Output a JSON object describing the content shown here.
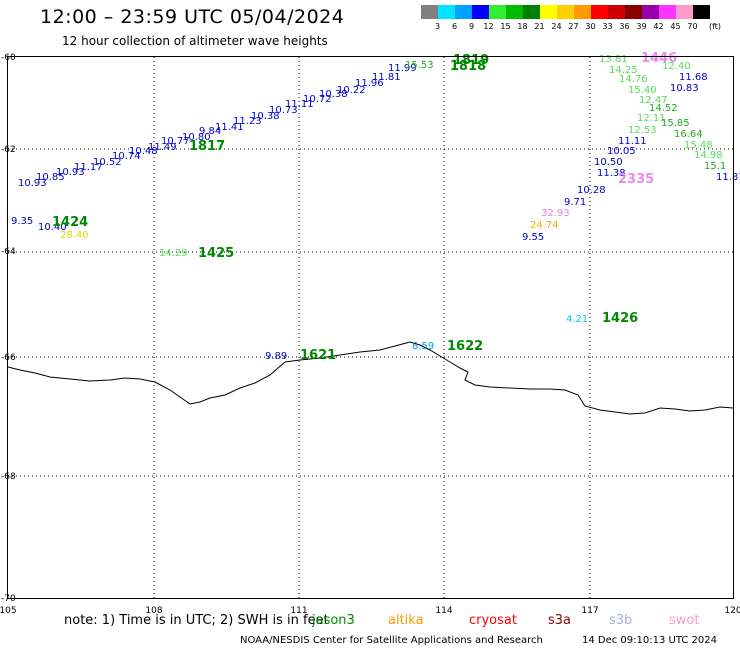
{
  "header": {
    "title": "12:00 – 23:59 UTC 05/04/2024",
    "subtitle": "12 hour collection of altimeter wave heights"
  },
  "colorbar": {
    "unit": "(ft)",
    "cells": [
      {
        "label": "3",
        "color": "#808080"
      },
      {
        "label": "6",
        "color": "#00e5ff"
      },
      {
        "label": "9",
        "color": "#00a0ff"
      },
      {
        "label": "12",
        "color": "#0000ff"
      },
      {
        "label": "15",
        "color": "#33ee33"
      },
      {
        "label": "18",
        "color": "#00bb00"
      },
      {
        "label": "21",
        "color": "#008000"
      },
      {
        "label": "24",
        "color": "#ffff00"
      },
      {
        "label": "27",
        "color": "#ffd000"
      },
      {
        "label": "30",
        "color": "#ff9900"
      },
      {
        "label": "33",
        "color": "#ff0000"
      },
      {
        "label": "36",
        "color": "#cc0000"
      },
      {
        "label": "39",
        "color": "#880000"
      },
      {
        "label": "42",
        "color": "#9900aa"
      },
      {
        "label": "45",
        "color": "#ff33ff"
      },
      {
        "label": "70",
        "color": "#ff99cc"
      },
      {
        "label": "",
        "color": "#000000"
      }
    ]
  },
  "axes": {
    "lon_labels": [
      "105",
      "108",
      "111",
      "114",
      "117",
      "120"
    ],
    "lat_labels": [
      "-60",
      "-62",
      "-64",
      "-66",
      "-68",
      "-70"
    ]
  },
  "readings": [
    {
      "text": "10.93",
      "color": "#0000cc"
    },
    {
      "text": "10.85",
      "color": "#0000cc"
    },
    {
      "text": "10.93",
      "color": "#0000cc"
    },
    {
      "text": "11.17",
      "color": "#0000cc"
    },
    {
      "text": "10.52",
      "color": "#0000cc"
    },
    {
      "text": "10.74",
      "color": "#0000cc"
    },
    {
      "text": "10.48",
      "color": "#0000cc"
    },
    {
      "text": "11.49",
      "color": "#0000cc"
    },
    {
      "text": "10.77",
      "color": "#0000cc"
    },
    {
      "text": "10.80",
      "color": "#0000cc"
    },
    {
      "text": "9.84",
      "color": "#0000cc"
    },
    {
      "text": "11.41",
      "color": "#0000cc"
    },
    {
      "text": "11.23",
      "color": "#0000cc"
    },
    {
      "text": "10.38",
      "color": "#0000cc"
    },
    {
      "text": "10.73",
      "color": "#0000cc"
    },
    {
      "text": "11.11",
      "color": "#0000cc"
    },
    {
      "text": "10.72",
      "color": "#0000cc"
    },
    {
      "text": "10.38",
      "color": "#0000cc"
    },
    {
      "text": "10.22",
      "color": "#0000cc"
    },
    {
      "text": "11.96",
      "color": "#0000cc"
    },
    {
      "text": "11.81",
      "color": "#0000cc"
    },
    {
      "text": "11.99",
      "color": "#0000cc"
    },
    {
      "text": "15.53",
      "color": "#22aa22"
    },
    {
      "text": "9.35",
      "color": "#0000cc"
    },
    {
      "text": "10.40",
      "color": "#0000cc"
    },
    {
      "text": "28.40",
      "color": "#dddd00"
    },
    {
      "text": "14.29",
      "color": "#55dd55"
    },
    {
      "text": "13.81",
      "color": "#55dd55"
    },
    {
      "text": "14.25",
      "color": "#55dd55"
    },
    {
      "text": "14.76",
      "color": "#55dd55"
    },
    {
      "text": "15.40",
      "color": "#55dd55"
    },
    {
      "text": "12.47",
      "color": "#55dd55"
    },
    {
      "text": "12.11",
      "color": "#55dd55"
    },
    {
      "text": "12.53",
      "color": "#55dd55"
    },
    {
      "text": "12.40",
      "color": "#55dd55"
    },
    {
      "text": "11.68",
      "color": "#0000cc"
    },
    {
      "text": "10.83",
      "color": "#0000cc"
    },
    {
      "text": "14.52",
      "color": "#22aa22"
    },
    {
      "text": "15.85",
      "color": "#22aa22"
    },
    {
      "text": "16.64",
      "color": "#22aa22"
    },
    {
      "text": "15.48",
      "color": "#55dd55"
    },
    {
      "text": "14.98",
      "color": "#55dd55"
    },
    {
      "text": "15.1",
      "color": "#22aa22"
    },
    {
      "text": "11.81",
      "color": "#0000cc"
    },
    {
      "text": "11.11",
      "color": "#0000cc"
    },
    {
      "text": "10.05",
      "color": "#0000cc"
    },
    {
      "text": "10.50",
      "color": "#0000cc"
    },
    {
      "text": "11.38",
      "color": "#0000cc"
    },
    {
      "text": "10.28",
      "color": "#0000cc"
    },
    {
      "text": "9.71",
      "color": "#0000cc"
    },
    {
      "text": "32.93",
      "color": "#ee77ee"
    },
    {
      "text": "24.74",
      "color": "#ffaa00"
    },
    {
      "text": "9.55",
      "color": "#0000cc"
    },
    {
      "text": "4.21",
      "color": "#00ccee"
    },
    {
      "text": "9.89",
      "color": "#0000cc"
    },
    {
      "text": "8.59",
      "color": "#00a0ee"
    }
  ],
  "time_labels": [
    {
      "text": "1819",
      "color": "#008800"
    },
    {
      "text": "1818",
      "color": "#008800"
    },
    {
      "text": "1817",
      "color": "#008800"
    },
    {
      "text": "1424",
      "color": "#008800"
    },
    {
      "text": "1425",
      "color": "#008800"
    },
    {
      "text": "1446",
      "color": "#ee88ee"
    },
    {
      "text": "2335",
      "color": "#ee88ee"
    },
    {
      "text": "1426",
      "color": "#008800"
    },
    {
      "text": "1621",
      "color": "#008800"
    },
    {
      "text": "1622",
      "color": "#008800"
    }
  ],
  "note": "note:  1) Time is in UTC; 2) SWH is in feet",
  "satellites": [
    {
      "text": "jason3",
      "color": "#008800"
    },
    {
      "text": "altika",
      "color": "#ff9900"
    },
    {
      "text": "cryosat",
      "color": "#ff0000"
    },
    {
      "text": "s3a",
      "color": "#880000"
    },
    {
      "text": "s3b",
      "color": "#aaaaee"
    },
    {
      "text": "swot",
      "color": "#ff99cc"
    }
  ],
  "footer": {
    "credit": "NOAA/NESDIS Center for Satellite Applications and Research",
    "timestamp": "14 Dec 09:10:13 UTC 2024"
  }
}
